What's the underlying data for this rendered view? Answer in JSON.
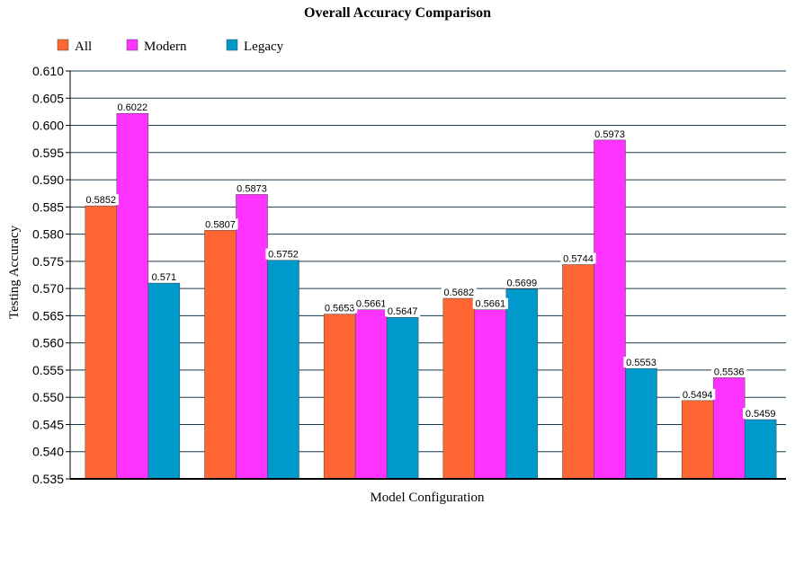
{
  "chart_data": {
    "type": "bar",
    "title": "Overall Accuracy Comparison",
    "xlabel": "Model Configuration",
    "ylabel": "Testing Accuracy",
    "ylim": [
      0.535,
      0.61
    ],
    "ytick_step": 0.005,
    "yticks": [
      "0.535",
      "0.540",
      "0.545",
      "0.550",
      "0.555",
      "0.560",
      "0.565",
      "0.570",
      "0.575",
      "0.580",
      "0.585",
      "0.590",
      "0.595",
      "0.600",
      "0.605",
      "0.610"
    ],
    "grid": true,
    "legend_position": "top-left",
    "categories": [
      "",
      "",
      "",
      "",
      "",
      ""
    ],
    "series": [
      {
        "name": "All",
        "color": "#ff6633",
        "values": [
          0.5852,
          0.5807,
          0.5653,
          0.5682,
          0.5744,
          0.5494
        ],
        "labels": [
          "0.5852",
          "0.5807",
          "0.5653",
          "0.5682",
          "0.5744",
          "0.5494"
        ]
      },
      {
        "name": "Modern",
        "color": "#ff33ff",
        "values": [
          0.6022,
          0.5873,
          0.5661,
          0.5661,
          0.5973,
          0.5536
        ],
        "labels": [
          "0.6022",
          "0.5873",
          "0.5661",
          "0.5661",
          "0.5973",
          "0.5536"
        ]
      },
      {
        "name": "Legacy",
        "color": "#0099cc",
        "values": [
          0.571,
          0.5752,
          0.5647,
          0.5699,
          0.5553,
          0.5459
        ],
        "labels": [
          "0.571",
          "0.5752",
          "0.5647",
          "0.5699",
          "0.5553",
          "0.5459"
        ]
      }
    ]
  }
}
